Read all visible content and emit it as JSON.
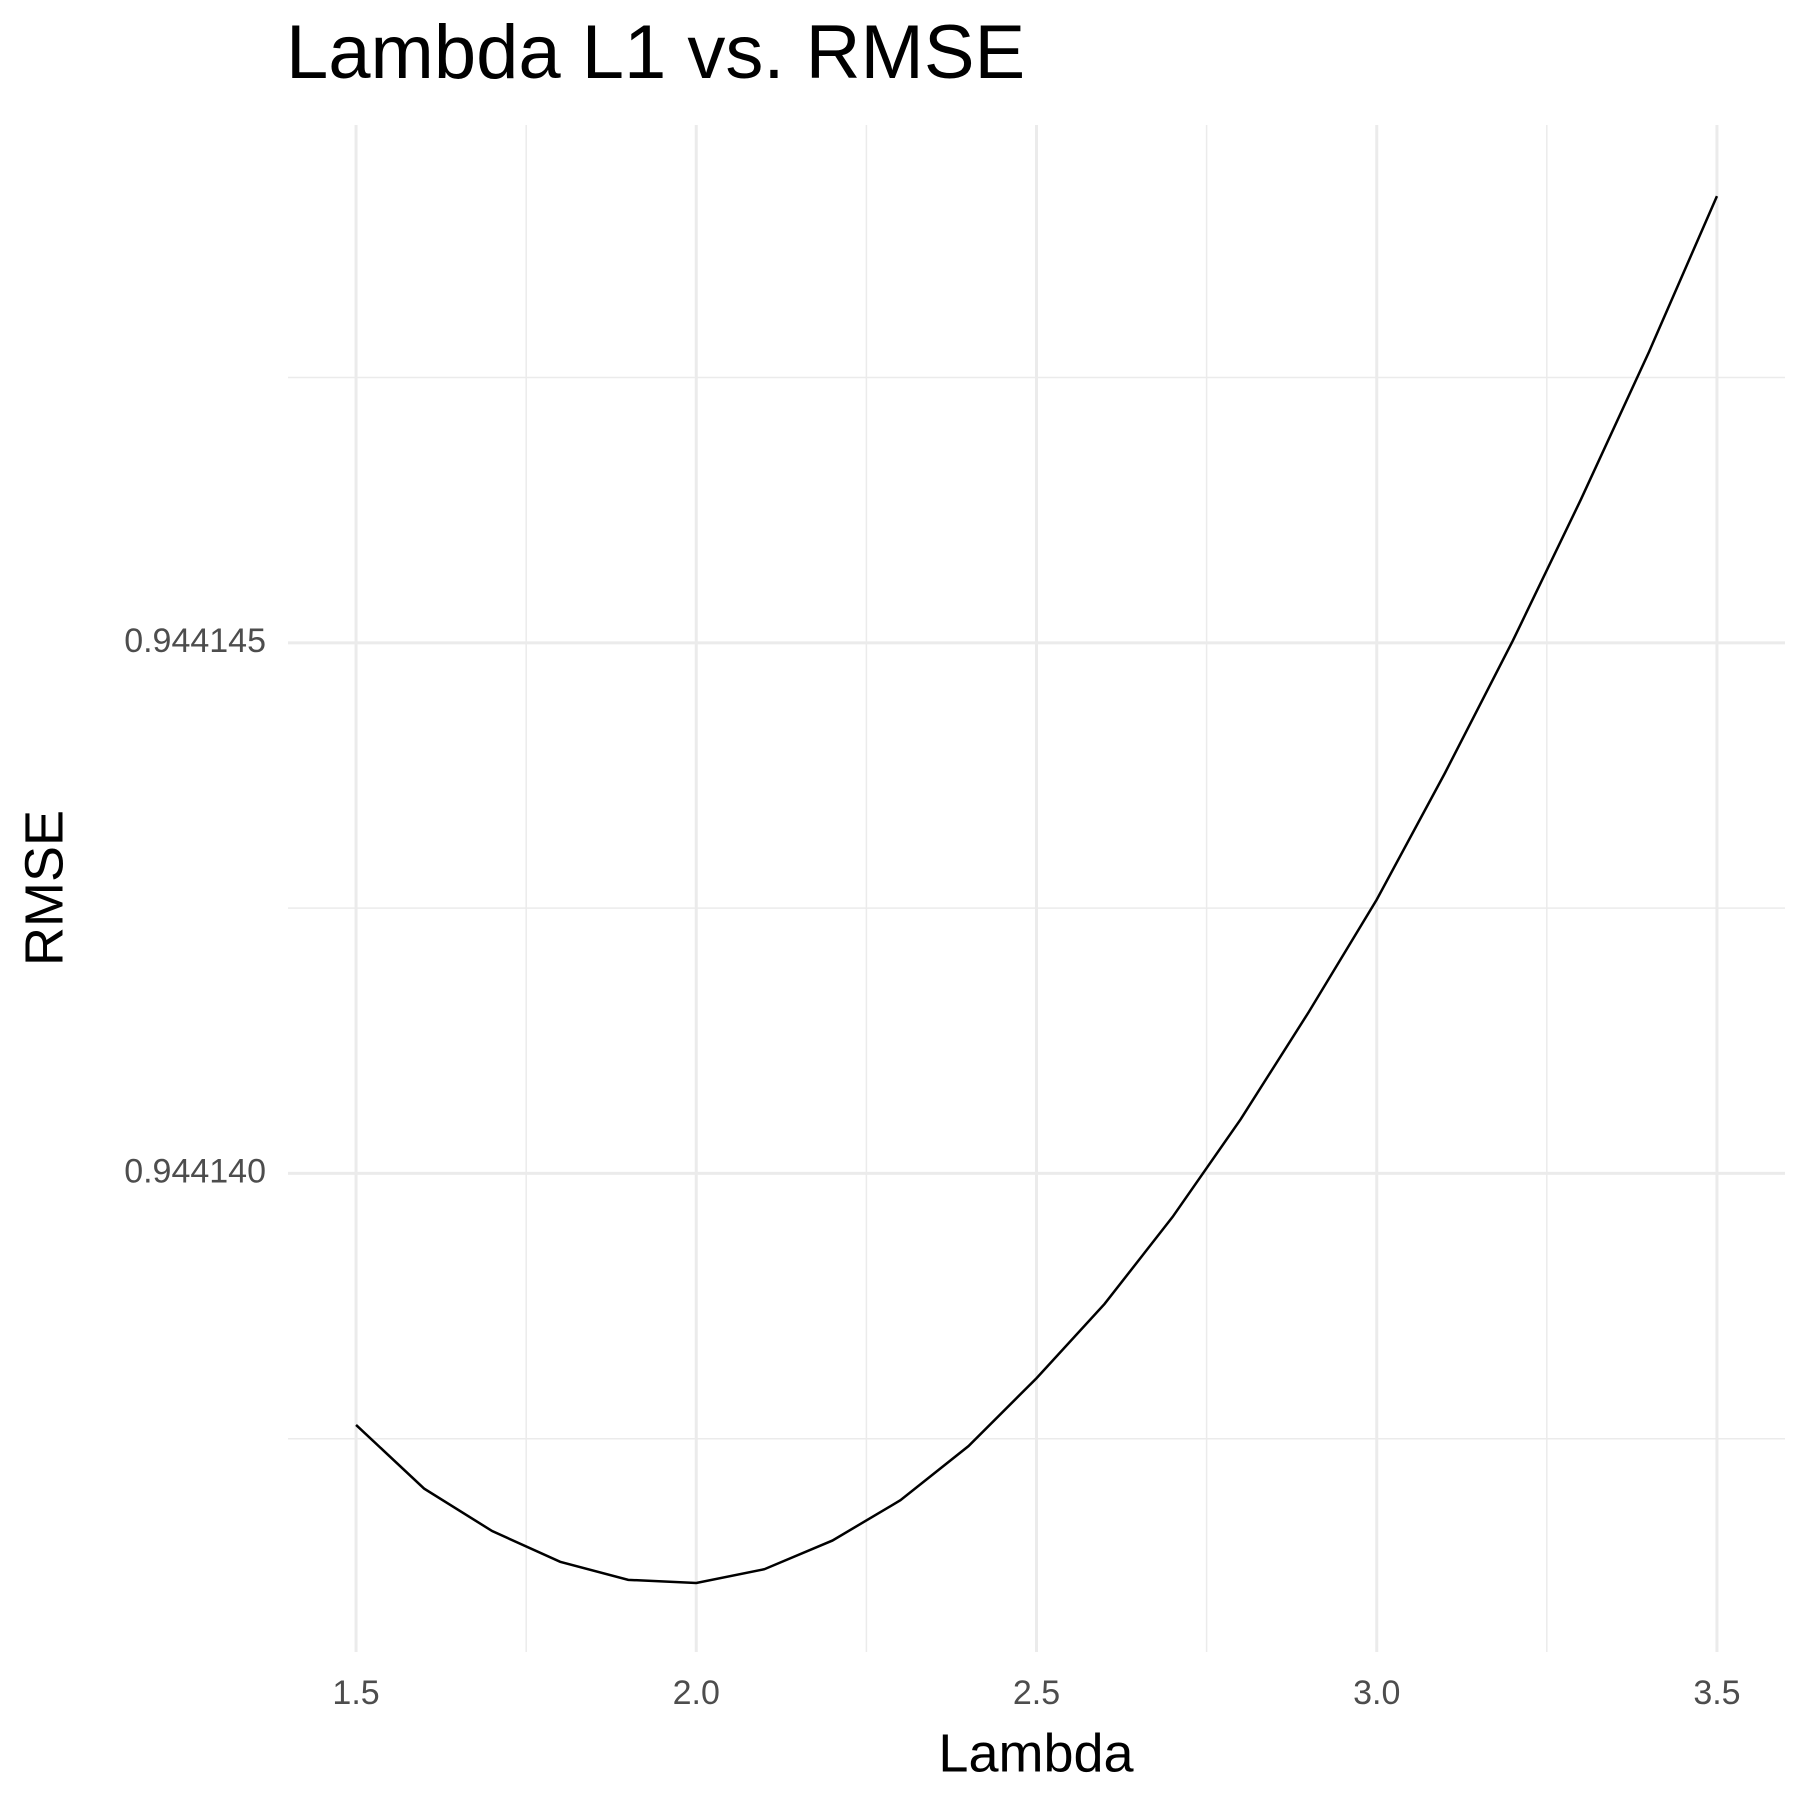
{
  "chart_data": {
    "type": "line",
    "title": "Lambda L1 vs. RMSE",
    "x_label": "Lambda",
    "y_label": "RMSE",
    "x": [
      1.5,
      1.6,
      1.7,
      1.8,
      1.9,
      2.0,
      2.1,
      2.2,
      2.3,
      2.4,
      2.5,
      2.6,
      2.7,
      2.8,
      2.9,
      3.0,
      3.1,
      3.2,
      3.3,
      3.4,
      3.5
    ],
    "series": [
      {
        "color": "#000000",
        "values": [
          0.94413763,
          0.94413703,
          0.94413663,
          0.94413634,
          0.94413617,
          0.94413614,
          0.94413627,
          0.94413654,
          0.94413692,
          0.94413743,
          0.94413807,
          0.94413877,
          0.94413959,
          0.94414051,
          0.94414152,
          0.94414258,
          0.94414377,
          0.94414502,
          0.94414635,
          0.94414774,
          0.94414921
        ]
      }
    ],
    "xlim": [
      1.4,
      3.6
    ],
    "ylim": [
      0.94413549,
      0.94414988
    ],
    "xticks": [
      1.5,
      {
        "value": 2,
        "label": "2.0"
      },
      2.5,
      {
        "value": 3,
        "label": "3.0"
      },
      3.5
    ],
    "yticks": [
      {
        "value": 0.94414,
        "label": "0.944140"
      },
      0.944145
    ],
    "x_minor_grid": [
      1.75,
      2.25,
      2.75,
      3.25
    ],
    "y_minor_grid": [
      0.9441375,
      0.9441425,
      0.9441475
    ],
    "grid": true
  }
}
